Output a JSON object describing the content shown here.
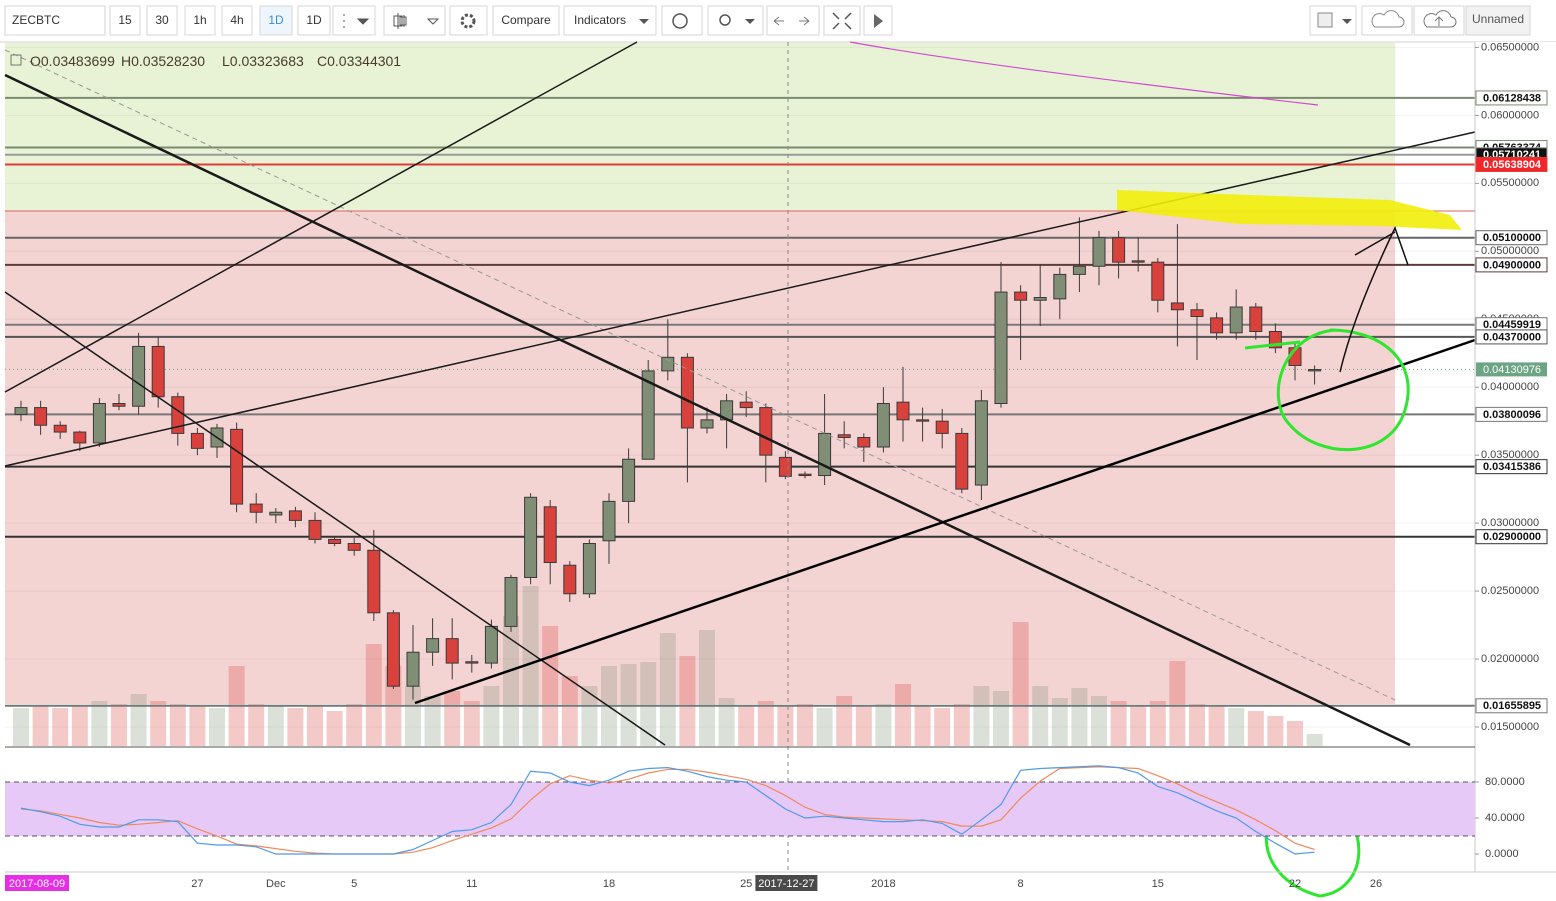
{
  "toolbar": {
    "symbol": "ZECBTC",
    "intervals": [
      "15",
      "30",
      "1h",
      "4h",
      "1D",
      "1D"
    ],
    "compare": "Compare",
    "indicators": "Indicators",
    "layout_name": "Unnamed"
  },
  "chart_data": {
    "type": "candlestick",
    "ohlc_legend": [
      {
        "name": "O",
        "value": 0.03483699,
        "label": "0.03483699"
      },
      {
        "name": "H",
        "value": 0.0352823,
        "label": "0.03528230"
      },
      {
        "name": "L",
        "value": 0.03323683,
        "label": "0.03323683"
      },
      {
        "name": "C",
        "value": 0.03344301,
        "label": "0.03344301"
      }
    ],
    "categories": [
      null,
      null,
      null,
      null,
      null,
      null,
      null,
      null,
      null,
      "27",
      null,
      null,
      null,
      "Dec",
      null,
      null,
      null,
      "5",
      null,
      null,
      null,
      null,
      null,
      "11",
      null,
      null,
      null,
      null,
      null,
      null,
      "18",
      null,
      null,
      null,
      null,
      null,
      null,
      "25",
      null,
      "2017-12-27",
      null,
      null,
      null,
      null,
      "2018",
      null,
      null,
      null,
      null,
      null,
      null,
      "8",
      null,
      null,
      null,
      null,
      null,
      null,
      "15",
      null,
      null,
      null,
      null,
      null,
      null,
      "22",
      null
    ],
    "open": [
      0.038,
      0.0385,
      0.0372,
      0.0367,
      0.0359,
      0.0388,
      0.0386,
      0.043,
      0.0393,
      0.0366,
      0.0356,
      0.0369,
      0.0314,
      0.0306,
      0.0309,
      0.0302,
      0.0288,
      0.0285,
      0.028,
      0.0234,
      0.018,
      0.0205,
      0.0215,
      0.0198,
      0.0197,
      0.0224,
      0.026,
      0.0312,
      0.0269,
      0.0248,
      0.0287,
      0.0316,
      0.0347,
      0.0412,
      0.0422,
      0.037,
      0.0376,
      0.0389,
      0.0385,
      0.03483699,
      0.0336,
      0.0335,
      0.0365,
      0.0363,
      0.0356,
      0.0389,
      0.0376,
      0.0375,
      0.0366,
      0.0328,
      0.0388,
      0.047,
      0.0464,
      0.0465,
      0.0483,
      0.0489,
      0.051,
      0.0493,
      0.0492,
      0.0462,
      0.0457,
      0.0451,
      0.044,
      0.0459,
      0.0441,
      0.0429,
      0.0412
    ],
    "high": [
      0.039,
      0.039,
      0.0375,
      0.0368,
      0.0392,
      0.0395,
      0.044,
      0.0437,
      0.0396,
      0.037,
      0.0373,
      0.0374,
      0.0322,
      0.0311,
      0.0312,
      0.0308,
      0.029,
      0.0289,
      0.0295,
      0.0236,
      0.0225,
      0.023,
      0.023,
      0.0203,
      0.0229,
      0.0262,
      0.0322,
      0.0317,
      0.0272,
      0.0288,
      0.0322,
      0.0355,
      0.042,
      0.045,
      0.0425,
      0.0385,
      0.0395,
      0.0397,
      0.0388,
      0.0352823,
      0.0338,
      0.0395,
      0.0375,
      0.0366,
      0.04,
      0.0415,
      0.0385,
      0.0384,
      0.037,
      0.0398,
      0.0492,
      0.0475,
      0.049,
      0.0488,
      0.0525,
      0.0515,
      0.0515,
      0.051,
      0.0495,
      0.052,
      0.0462,
      0.0455,
      0.0472,
      0.0462,
      0.0447,
      0.0432,
      0.0416
    ],
    "low": [
      0.0375,
      0.0365,
      0.0362,
      0.0353,
      0.0356,
      0.0383,
      0.038,
      0.0385,
      0.0357,
      0.035,
      0.0348,
      0.0308,
      0.03,
      0.03,
      0.0297,
      0.0285,
      0.0283,
      0.0276,
      0.0228,
      0.0178,
      0.017,
      0.0195,
      0.0185,
      0.019,
      0.0193,
      0.022,
      0.0255,
      0.0255,
      0.0242,
      0.0245,
      0.027,
      0.03,
      0.0347,
      0.0405,
      0.033,
      0.0366,
      0.0355,
      0.0378,
      0.033,
      0.03323683,
      0.0333,
      0.0328,
      0.0355,
      0.0345,
      0.0352,
      0.036,
      0.036,
      0.0355,
      0.0322,
      0.0317,
      0.0385,
      0.042,
      0.0445,
      0.045,
      0.047,
      0.0475,
      0.048,
      0.0485,
      0.0455,
      0.043,
      0.042,
      0.0435,
      0.0435,
      0.0435,
      0.0425,
      0.0405,
      0.0402
    ],
    "close": [
      0.0385,
      0.0372,
      0.0367,
      0.0359,
      0.0388,
      0.0386,
      0.043,
      0.0393,
      0.0366,
      0.0355,
      0.037,
      0.0314,
      0.0308,
      0.0308,
      0.0302,
      0.0288,
      0.0285,
      0.028,
      0.0234,
      0.018,
      0.0205,
      0.0215,
      0.0197,
      0.0197,
      0.0224,
      0.026,
      0.0319,
      0.0271,
      0.0248,
      0.0285,
      0.0316,
      0.0347,
      0.0412,
      0.0422,
      0.037,
      0.0376,
      0.039,
      0.0385,
      0.035,
      0.03344301,
      0.0335,
      0.0366,
      0.0363,
      0.0356,
      0.0388,
      0.0376,
      0.0375,
      0.0366,
      0.0325,
      0.039,
      0.047,
      0.0464,
      0.0466,
      0.0483,
      0.0489,
      0.051,
      0.0492,
      0.0492,
      0.0464,
      0.0457,
      0.0452,
      0.044,
      0.0459,
      0.0441,
      0.0429,
      0.0416,
      0.0413
    ],
    "volume": [
      38,
      40,
      38,
      40,
      45,
      42,
      52,
      45,
      42,
      40,
      38,
      80,
      42,
      40,
      38,
      40,
      35,
      42,
      102,
      80,
      60,
      50,
      55,
      45,
      60,
      130,
      160,
      120,
      70,
      60,
      80,
      82,
      84,
      113,
      90,
      116,
      48,
      40,
      45,
      40,
      42,
      38,
      50,
      40,
      42,
      62,
      40,
      38,
      42,
      60,
      55,
      124,
      60,
      48,
      58,
      50,
      45,
      40,
      45,
      85,
      42,
      40,
      38,
      35,
      30,
      25,
      12
    ],
    "up_color": "#7f8e74",
    "down_color": "#d9423c",
    "ylim": [
      0.0136,
      0.0654
    ],
    "yticks": [
      {
        "value": 0.015,
        "label": "0.01500000"
      },
      {
        "value": 0.02,
        "label": "0.02000000"
      },
      {
        "value": 0.025,
        "label": "0.02500000"
      },
      {
        "value": 0.03,
        "label": "0.03000000"
      },
      {
        "value": 0.035,
        "label": "0.03500000"
      },
      {
        "value": 0.04,
        "label": "0.04000000"
      },
      {
        "value": 0.045,
        "label": "0.04500000"
      },
      {
        "value": 0.05,
        "label": "0.05000000"
      },
      {
        "value": 0.055,
        "label": "0.05500000"
      },
      {
        "value": 0.06,
        "label": "0.06000000"
      },
      {
        "value": 0.065,
        "label": "0.06500000"
      }
    ],
    "grid": true,
    "price_levels": [
      {
        "value": 0.06128438,
        "label": "0.06128438",
        "line_color": "#7d8a72",
        "badge_color": "#ffffff",
        "text_color": "#111111"
      },
      {
        "value": 0.05763374,
        "label": "0.05763374",
        "line_color": "#7d8a72",
        "badge_color": "#ffffff",
        "text_color": "#111111"
      },
      {
        "value": 0.05710241,
        "label": "0.05710241",
        "line_color": "#9a9a9a",
        "badge_color": "#111111",
        "text_color": "#ffffff"
      },
      {
        "value": 0.05638904,
        "label": "0.05638904",
        "line_color": "#e53935",
        "badge_color": "#f0262a",
        "text_color": "#ffffff"
      },
      {
        "value": 0.051,
        "label": "0.05100000",
        "line_color": "#666666",
        "badge_color": "#ffffff",
        "text_color": "#111111"
      },
      {
        "value": 0.049,
        "label": "0.04900000",
        "line_color": "#5c3b3b",
        "badge_color": "#ffffff",
        "text_color": "#111111"
      },
      {
        "value": 0.04459919,
        "label": "0.04459919",
        "line_color": "#7a7a7a",
        "badge_color": "#ffffff",
        "text_color": "#111111"
      },
      {
        "value": 0.0437,
        "label": "0.04370000",
        "line_color": "#555555",
        "badge_color": "#ffffff",
        "text_color": "#111111"
      },
      {
        "value": 0.03800096,
        "label": "0.03800096",
        "line_color": "#777777",
        "badge_color": "#ffffff",
        "text_color": "#111111"
      },
      {
        "value": 0.03415386,
        "label": "0.03415386",
        "line_color": "#333333",
        "badge_color": "#ffffff",
        "text_color": "#111111"
      },
      {
        "value": 0.029,
        "label": "0.02900000",
        "line_color": "#333333",
        "badge_color": "#ffffff",
        "text_color": "#111111"
      },
      {
        "value": 0.01655895,
        "label": "0.01655895",
        "line_color": "#777777",
        "badge_color": "#ffffff",
        "text_color": "#111111"
      }
    ],
    "last_price": {
      "value": 0.04130976,
      "label": "0.04130976",
      "color": "#6ca583"
    },
    "x_labels_extra": [
      "26"
    ],
    "range_start": "2017-08-09",
    "stochastic": {
      "k": [
        51,
        47,
        42,
        33,
        30,
        30,
        38,
        38,
        36,
        12,
        10,
        10,
        8,
        0,
        0,
        0,
        0,
        0,
        0,
        0,
        5,
        15,
        25,
        27,
        35,
        55,
        92,
        90,
        80,
        76,
        82,
        92,
        95,
        96,
        92,
        86,
        82,
        80,
        65,
        50,
        40,
        42,
        40,
        38,
        36,
        36,
        38,
        34,
        22,
        38,
        55,
        93,
        95,
        96,
        97,
        98,
        96,
        90,
        75,
        68,
        58,
        48,
        40,
        25,
        12,
        0,
        2
      ],
      "d": [
        50,
        48,
        44,
        40,
        35,
        32,
        33,
        35,
        37,
        28,
        20,
        11,
        9,
        6,
        3,
        1,
        0,
        0,
        0,
        0,
        2,
        7,
        15,
        22,
        29,
        39,
        60,
        78,
        87,
        82,
        79,
        83,
        90,
        94,
        94,
        91,
        87,
        83,
        76,
        65,
        52,
        44,
        41,
        40,
        39,
        38,
        37,
        36,
        31,
        31,
        38,
        62,
        81,
        95,
        96,
        97,
        96,
        95,
        87,
        78,
        67,
        58,
        49,
        38,
        26,
        12,
        5
      ],
      "k_color": "#4f9be8",
      "d_color": "#f08a5d",
      "ylim": [
        -20,
        117.8
      ],
      "yticks": [
        {
          "value": 0,
          "label": "0.0000"
        },
        {
          "value": 40,
          "label": "40.0000"
        },
        {
          "value": 80,
          "label": "80.0000"
        }
      ],
      "bands": [
        20,
        80
      ],
      "band_color": "#e6c9f7"
    }
  }
}
